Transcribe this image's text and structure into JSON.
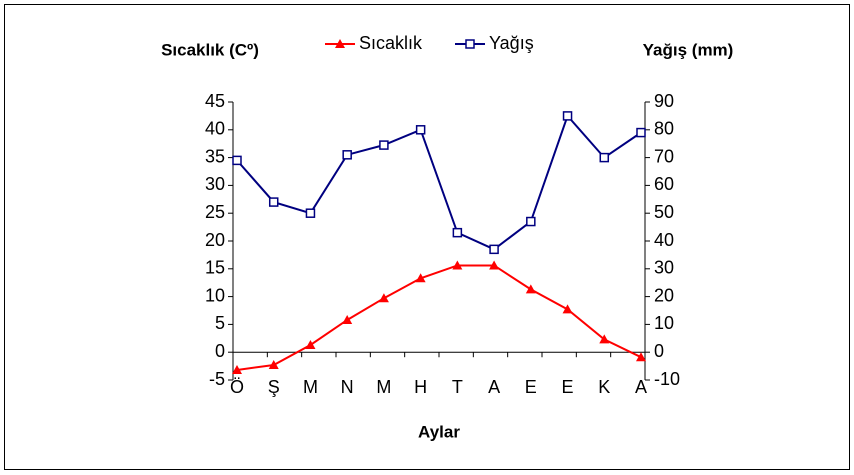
{
  "chart_data": {
    "type": "line",
    "y_label": "Sıcaklık (Cº)",
    "y2_label": "Yağış (mm)",
    "x_label": "Aylar",
    "categories": [
      "Ö",
      "Ş",
      "M",
      "N",
      "M",
      "H",
      "T",
      "A",
      "E",
      "E",
      "K",
      "A"
    ],
    "series": [
      {
        "name": "Sıcaklık",
        "color": "#ff0000",
        "marker": "triangle",
        "values": [
          -3.2,
          -2.3,
          1.3,
          5.8,
          9.7,
          13.3,
          15.6,
          15.6,
          11.3,
          7.7,
          2.3,
          -0.9
        ]
      },
      {
        "name": "Yağış",
        "color": "#000080",
        "marker": "square",
        "axis": "y2",
        "values": [
          69,
          54,
          50,
          71,
          74.5,
          80,
          43,
          37,
          47,
          85,
          70,
          79
        ]
      }
    ],
    "ylim": [
      -5,
      45
    ],
    "yticks": [
      -5,
      0,
      5,
      10,
      15,
      20,
      25,
      30,
      35,
      40,
      45
    ],
    "y2lim": [
      -10,
      90
    ],
    "y2ticks": [
      -10,
      0,
      10,
      20,
      30,
      40,
      50,
      60,
      70,
      80,
      90
    ],
    "legend": "top",
    "grid": false
  }
}
